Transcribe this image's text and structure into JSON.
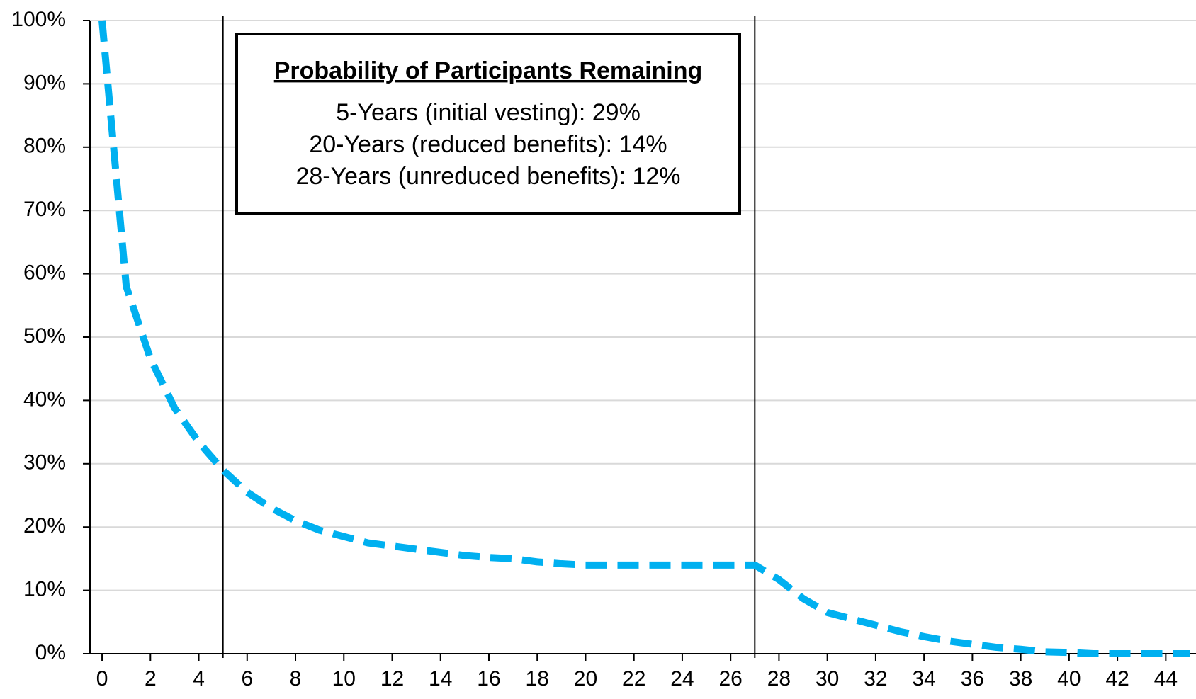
{
  "chart_data": {
    "type": "line",
    "annotation": {
      "title": "Probability of Participants Remaining",
      "lines": [
        "5-Years (initial vesting): 29%",
        "20-Years (reduced benefits): 14%",
        "28-Years (unreduced benefits): 12%"
      ]
    },
    "x": [
      0,
      1,
      2,
      3,
      4,
      5,
      6,
      7,
      8,
      9,
      10,
      11,
      12,
      13,
      14,
      15,
      16,
      17,
      18,
      19,
      20,
      21,
      22,
      23,
      24,
      25,
      26,
      27,
      28,
      29,
      30,
      31,
      32,
      33,
      34,
      35,
      36,
      37,
      38,
      39,
      40,
      41,
      42,
      43,
      44,
      45
    ],
    "series": [
      {
        "color": "#00b0f0",
        "values": [
          100,
          58,
          46.6,
          38.8,
          33.4,
          29,
          25.5,
          23,
          21,
          19.5,
          18.5,
          17.5,
          17,
          16.5,
          16,
          15.5,
          15.2,
          15,
          14.5,
          14.2,
          14,
          14,
          14,
          14,
          14,
          14,
          14,
          14,
          11.7,
          8.7,
          6.5,
          5.5,
          4.5,
          3.5,
          2.7,
          2,
          1.5,
          1,
          0.7,
          0.3,
          0.2,
          0,
          0,
          0,
          0,
          0
        ]
      }
    ],
    "xlim": [
      -0.5,
      45.25
    ],
    "xticks": [
      0,
      2,
      4,
      6,
      8,
      10,
      12,
      14,
      16,
      18,
      20,
      22,
      24,
      26,
      28,
      30,
      32,
      34,
      36,
      38,
      40,
      42,
      44
    ],
    "ylim": [
      0,
      100
    ],
    "yticks": [
      {
        "value": 0,
        "label": "0%"
      },
      {
        "value": 10,
        "label": "10%"
      },
      {
        "value": 20,
        "label": "20%"
      },
      {
        "value": 30,
        "label": "30%"
      },
      {
        "value": 40,
        "label": "40%"
      },
      {
        "value": 50,
        "label": "50%"
      },
      {
        "value": 60,
        "label": "60%"
      },
      {
        "value": 70,
        "label": "70%"
      },
      {
        "value": 80,
        "label": "80%"
      },
      {
        "value": 90,
        "label": "90%"
      },
      {
        "value": 100,
        "label": "100%"
      }
    ],
    "vlines": [
      5,
      27
    ],
    "grid": true
  }
}
